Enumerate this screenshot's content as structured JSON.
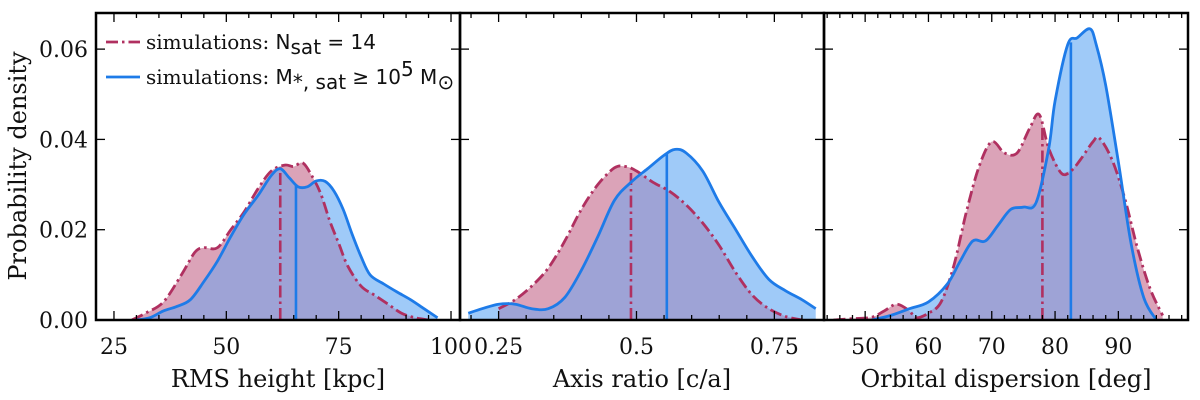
{
  "chart_data": {
    "type": "area",
    "ylabel": "Probability density",
    "ylim": [
      0,
      0.068
    ],
    "y_ticks": [
      0.0,
      0.02,
      0.04,
      0.06
    ],
    "y_tick_labels": [
      "0.00",
      "0.02",
      "0.04",
      "0.06"
    ],
    "colors": {
      "crimson": "#b03060",
      "blue": "#1e7be8",
      "crimson_fill": "#dba3b8",
      "blue_fill": "#9fcaf8",
      "overlap_fill": "#9ea3d6"
    },
    "legend": {
      "placement": "top-left",
      "entries": [
        {
          "prefix": "simulations: ",
          "math": "N",
          "sub": "sat",
          "rest": " = 14",
          "style": "dash-dot",
          "color": "#b03060"
        },
        {
          "prefix": "simulations: ",
          "math": "M",
          "sub": "*, sat",
          "rest": " ≥ 10",
          "sup": "5",
          "tail": " M",
          "tail_sub": "⊙",
          "style": "solid",
          "color": "#1e7be8"
        }
      ]
    },
    "panels": [
      {
        "xlabel": "RMS height [kpc]",
        "xlim": [
          21,
          102
        ],
        "x_ticks": [
          25,
          50,
          75,
          100
        ],
        "x_tick_labels": [
          "25",
          "50",
          "75",
          "100"
        ],
        "series": [
          {
            "name": "simulations: N_sat = 14",
            "style": "dash-dot",
            "color": "#b03060",
            "median": 62,
            "x": [
              29,
              32,
              36,
              40,
              43,
              45,
              48,
              51,
              54,
              57,
              60,
              63,
              65,
              67,
              69,
              71,
              73,
              75,
              77,
              80,
              83,
              86,
              89,
              92,
              95
            ],
            "y": [
              0.0,
              0.0015,
              0.004,
              0.01,
              0.015,
              0.016,
              0.016,
              0.02,
              0.024,
              0.029,
              0.033,
              0.0343,
              0.034,
              0.0348,
              0.032,
              0.028,
              0.022,
              0.017,
              0.012,
              0.0075,
              0.0055,
              0.0035,
              0.0015,
              0.0005,
              0.0
            ]
          },
          {
            "name": "simulations: M_*,sat ≥ 10^5 M_sun",
            "style": "solid",
            "color": "#1e7be8",
            "median": 65.5,
            "x": [
              30,
              33,
              36,
              39,
              42,
              45,
              48,
              51,
              54,
              57,
              60,
              62,
              64,
              66,
              68,
              70,
              72,
              74,
              76,
              78,
              80,
              82,
              85,
              88,
              91,
              94,
              97
            ],
            "y": [
              0.0,
              0.0005,
              0.002,
              0.003,
              0.0045,
              0.0085,
              0.013,
              0.0185,
              0.0235,
              0.0275,
              0.032,
              0.0335,
              0.0315,
              0.0295,
              0.0295,
              0.0308,
              0.0307,
              0.0285,
              0.0245,
              0.019,
              0.014,
              0.01,
              0.008,
              0.0062,
              0.0045,
              0.0025,
              0.0005
            ]
          }
        ]
      },
      {
        "xlabel": "Axis ratio [c/a]",
        "xlim": [
          0.18,
          0.84
        ],
        "x_ticks": [
          0.25,
          0.5,
          0.75
        ],
        "x_tick_labels": [
          "0.25",
          "0.5",
          "0.75"
        ],
        "series": [
          {
            "name": "simulations: N_sat = 14",
            "style": "dash-dot",
            "color": "#b03060",
            "median": 0.49,
            "x": [
              0.25,
              0.28,
              0.31,
              0.34,
              0.37,
              0.4,
              0.43,
              0.46,
              0.48,
              0.5,
              0.53,
              0.56,
              0.59,
              0.62,
              0.65,
              0.68,
              0.71,
              0.74,
              0.77,
              0.8
            ],
            "y": [
              0.0025,
              0.0045,
              0.0075,
              0.0115,
              0.0175,
              0.0245,
              0.03,
              0.0337,
              0.034,
              0.033,
              0.0305,
              0.0285,
              0.0255,
              0.0215,
              0.0165,
              0.0105,
              0.0055,
              0.0025,
              0.0008,
              0.0
            ]
          },
          {
            "name": "simulations: M_*,sat ≥ 10^5 M_sun",
            "style": "solid",
            "color": "#1e7be8",
            "median": 0.555,
            "x": [
              0.195,
              0.22,
              0.25,
              0.28,
              0.31,
              0.34,
              0.37,
              0.4,
              0.43,
              0.46,
              0.49,
              0.52,
              0.55,
              0.57,
              0.59,
              0.62,
              0.65,
              0.68,
              0.71,
              0.74,
              0.77,
              0.8,
              0.825
            ],
            "y": [
              0.0015,
              0.0025,
              0.0035,
              0.0035,
              0.0025,
              0.0025,
              0.005,
              0.011,
              0.0185,
              0.0265,
              0.0305,
              0.0335,
              0.0365,
              0.0378,
              0.037,
              0.033,
              0.026,
              0.02,
              0.014,
              0.009,
              0.0065,
              0.0045,
              0.0025
            ]
          }
        ]
      },
      {
        "xlabel": "Orbital dispersion [deg]",
        "xlim": [
          43.5,
          101
        ],
        "x_ticks": [
          50,
          60,
          70,
          80,
          90
        ],
        "x_tick_labels": [
          "50",
          "60",
          "70",
          "80",
          "90"
        ],
        "series": [
          {
            "name": "simulations: N_sat = 14",
            "style": "dash-dot",
            "color": "#b03060",
            "median": 78,
            "x": [
              45,
              48,
              51,
              53,
              55,
              57,
              58,
              60,
              62,
              64,
              66,
              68,
              70,
              72,
              74,
              76,
              77.5,
              79,
              81,
              82.5,
              84,
              86,
              87,
              89,
              91,
              93,
              95,
              97
            ],
            "y": [
              0.0,
              0.0003,
              0.0006,
              0.002,
              0.0035,
              0.002,
              0.0005,
              0.0015,
              0.004,
              0.012,
              0.024,
              0.034,
              0.0395,
              0.037,
              0.037,
              0.0425,
              0.0455,
              0.038,
              0.0325,
              0.033,
              0.0355,
              0.0395,
              0.0403,
              0.0355,
              0.027,
              0.016,
              0.007,
              0.001
            ]
          },
          {
            "name": "simulations: M_*,sat ≥ 10^5 M_sun",
            "style": "solid",
            "color": "#1e7be8",
            "median": 82.5,
            "x": [
              51,
              54,
              57,
              60,
              63,
              65,
              67,
              69,
              71,
              73,
              75,
              77,
              79,
              80,
              82,
              83.5,
              85.5,
              86.5,
              88,
              90,
              92,
              94,
              96
            ],
            "y": [
              0.0,
              0.001,
              0.0025,
              0.004,
              0.008,
              0.013,
              0.0175,
              0.0175,
              0.021,
              0.0245,
              0.025,
              0.026,
              0.038,
              0.0485,
              0.061,
              0.0625,
              0.0645,
              0.061,
              0.052,
              0.035,
              0.017,
              0.005,
              0.0
            ]
          }
        ]
      }
    ]
  }
}
